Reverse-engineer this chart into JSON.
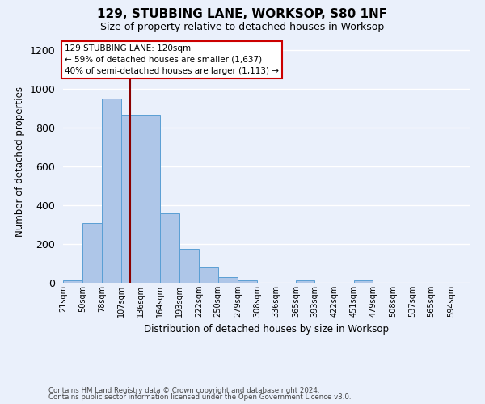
{
  "title": "129, STUBBING LANE, WORKSOP, S80 1NF",
  "subtitle": "Size of property relative to detached houses in Worksop",
  "xlabel": "Distribution of detached houses by size in Worksop",
  "ylabel": "Number of detached properties",
  "footnote1": "Contains HM Land Registry data © Crown copyright and database right 2024.",
  "footnote2": "Contains public sector information licensed under the Open Government Licence v3.0.",
  "bin_labels": [
    "21sqm",
    "50sqm",
    "78sqm",
    "107sqm",
    "136sqm",
    "164sqm",
    "193sqm",
    "222sqm",
    "250sqm",
    "279sqm",
    "308sqm",
    "336sqm",
    "365sqm",
    "393sqm",
    "422sqm",
    "451sqm",
    "479sqm",
    "508sqm",
    "537sqm",
    "565sqm",
    "594sqm"
  ],
  "bar_heights": [
    13,
    310,
    950,
    865,
    865,
    360,
    175,
    80,
    28,
    13,
    0,
    0,
    13,
    0,
    0,
    13,
    0,
    0,
    0,
    0,
    0
  ],
  "bar_color": "#aec6e8",
  "bar_edgecolor": "#5a9fd4",
  "background_color": "#eaf0fb",
  "grid_color": "#ffffff",
  "vline_x": 120,
  "vline_color": "#8b0000",
  "annotation_line1": "129 STUBBING LANE: 120sqm",
  "annotation_line2": "← 59% of detached houses are smaller (1,637)",
  "annotation_line3": "40% of semi-detached houses are larger (1,113) →",
  "annotation_box_color": "#ffffff",
  "annotation_box_edgecolor": "#cc0000",
  "ylim": [
    0,
    1250
  ],
  "yticks": [
    0,
    200,
    400,
    600,
    800,
    1000,
    1200
  ],
  "bin_edges": [
    21,
    50,
    78,
    107,
    136,
    164,
    193,
    222,
    250,
    279,
    308,
    336,
    365,
    393,
    422,
    451,
    479,
    508,
    537,
    565,
    594,
    623
  ]
}
